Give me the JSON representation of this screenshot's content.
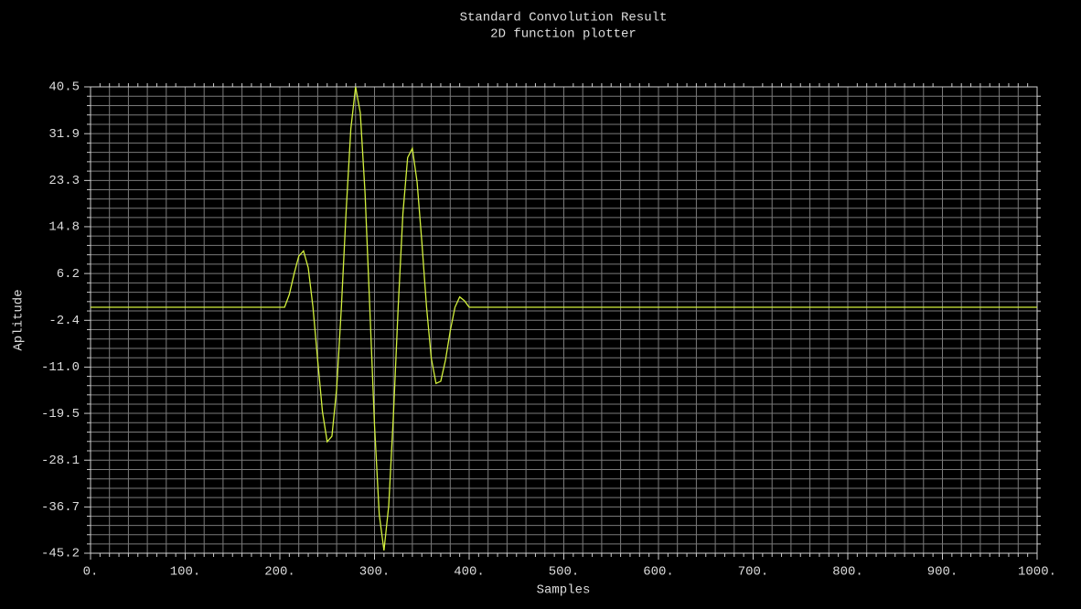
{
  "chart_data": {
    "type": "line",
    "title": "Standard Convolution Result",
    "subtitle": "2D function plotter",
    "x_label": "Samples",
    "y_label": "Aplitude",
    "grid": true,
    "xlim": [
      0,
      1000
    ],
    "ylim": [
      -45.2,
      40.5
    ],
    "xticks": [
      {
        "value": 0,
        "label": "0."
      },
      {
        "value": 100,
        "label": "100."
      },
      {
        "value": 200,
        "label": "200."
      },
      {
        "value": 300,
        "label": "300."
      },
      {
        "value": 400,
        "label": "400."
      },
      {
        "value": 500,
        "label": "500."
      },
      {
        "value": 600,
        "label": "600."
      },
      {
        "value": 700,
        "label": "700."
      },
      {
        "value": 800,
        "label": "800."
      },
      {
        "value": 900,
        "label": "900."
      },
      {
        "value": 1000,
        "label": "1000."
      }
    ],
    "yticks": [
      40.5,
      31.9,
      23.3,
      14.8,
      6.2,
      -2.4,
      {
        "value": -11,
        "label": "-11.0"
      },
      -19.5,
      -28.1,
      -36.7,
      -45.2
    ],
    "x": [
      0,
      200,
      205,
      210,
      215,
      220,
      225,
      230,
      235,
      240,
      245,
      250,
      255,
      260,
      265,
      270,
      275,
      280,
      285,
      290,
      295,
      300,
      305,
      310,
      315,
      320,
      325,
      330,
      335,
      340,
      345,
      350,
      355,
      360,
      365,
      370,
      375,
      380,
      385,
      390,
      395,
      400,
      1000
    ],
    "series": [
      {
        "color": "#d2f03c",
        "values": [
          0,
          0,
          0,
          2.35,
          6.1,
          9.4,
          10.35,
          7.25,
          0,
          -9.8,
          -19.2,
          -24.7,
          -23.7,
          -15.0,
          0,
          17.6,
          32.8,
          40.5,
          35.7,
          21.0,
          0,
          -21.65,
          -38.1,
          -44.7,
          -36.5,
          -19.8,
          0,
          17.2,
          27.5,
          29.2,
          23.0,
          12.0,
          0,
          -9.4,
          -14.0,
          -13.6,
          -9.7,
          -4.35,
          0,
          1.9,
          1.2,
          0,
          0
        ]
      }
    ]
  }
}
